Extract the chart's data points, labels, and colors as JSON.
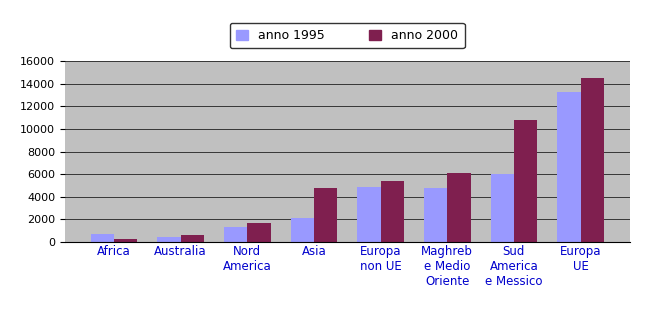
{
  "categories": [
    "Africa",
    "Australia",
    "Nord\nAmerica",
    "Asia",
    "Europa\nnon UE",
    "Maghreb\ne Medio\nOriente",
    "Sud\nAmerica\ne Messico",
    "Europa\nUE"
  ],
  "values_1995": [
    700,
    450,
    1300,
    2100,
    4850,
    4750,
    6000,
    13300
  ],
  "values_2000": [
    280,
    600,
    1650,
    4750,
    5400,
    6100,
    10800,
    14500
  ],
  "color_1995": "#9999ff",
  "color_2000": "#7f1f4f",
  "legend_1995": "anno 1995",
  "legend_2000": "anno 2000",
  "ylim": [
    0,
    16000
  ],
  "yticks": [
    0,
    2000,
    4000,
    6000,
    8000,
    10000,
    12000,
    14000,
    16000
  ],
  "chart_bg": "#c0c0c0",
  "fig_bg": "#ffffff",
  "bar_width": 0.35,
  "xlabel_color": "#0000cc",
  "grid_color": "#000000",
  "xlabel_fontsize": 8.5,
  "ytick_fontsize": 8
}
